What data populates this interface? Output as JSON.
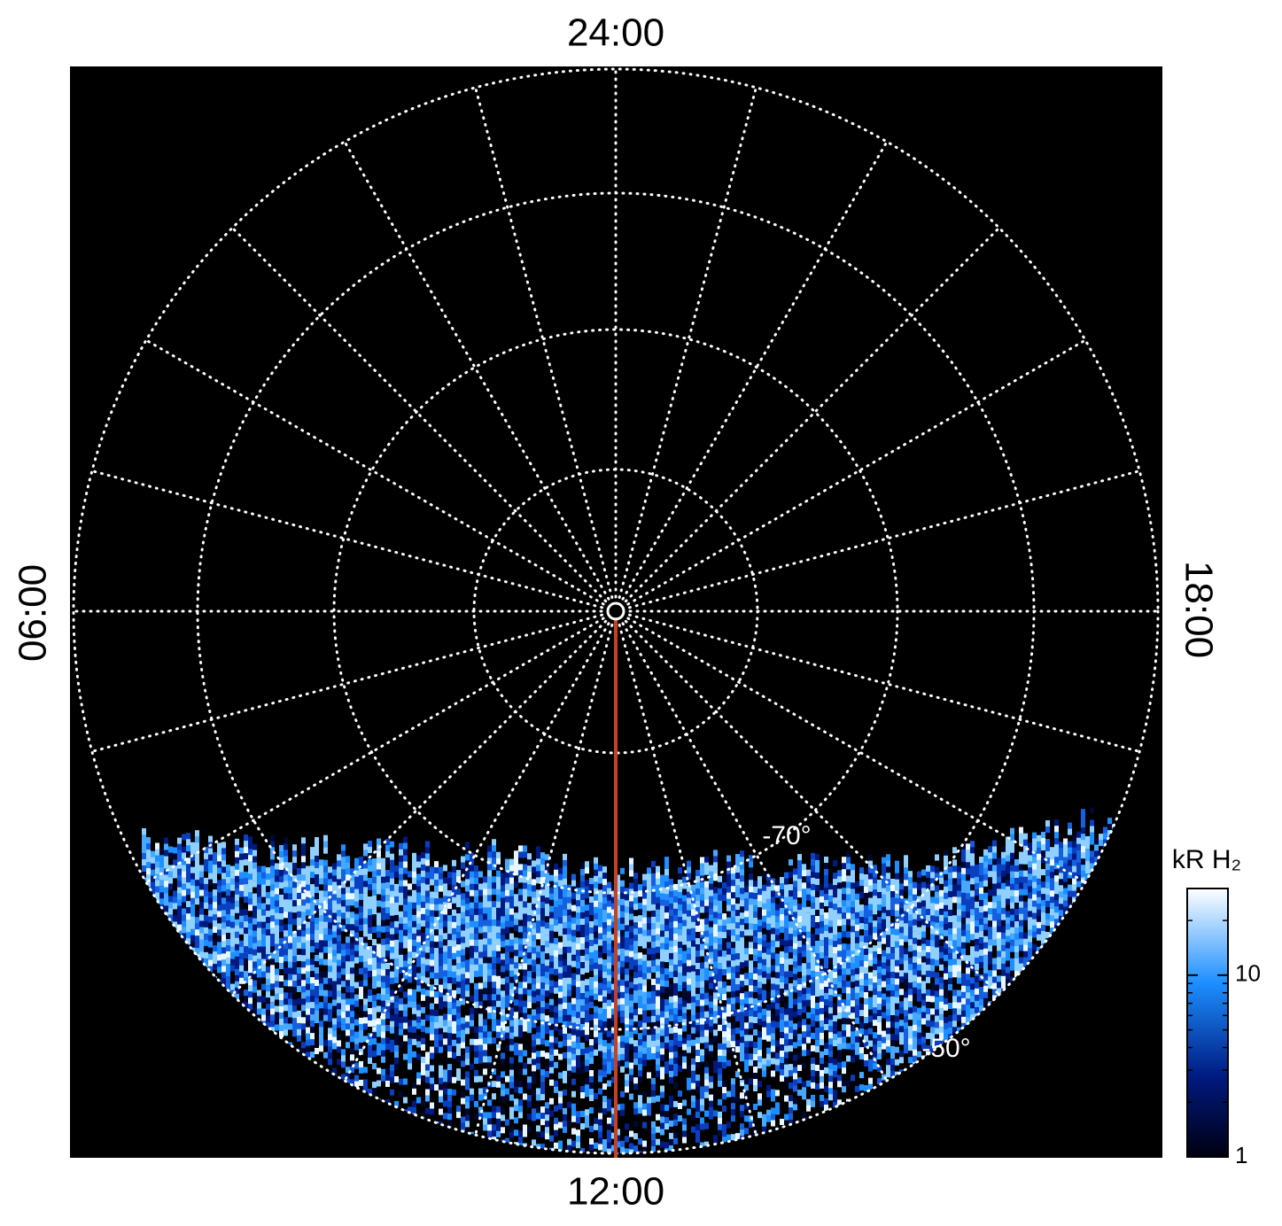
{
  "map": {
    "hour_labels": {
      "top": "24:00",
      "bottom": "12:00",
      "left": "06:00",
      "right": "18:00"
    },
    "latitude_labels": [
      "-70°",
      "-50°"
    ],
    "colorbar": {
      "title": "kR H₂",
      "scale": "log",
      "lim": [
        1,
        30
      ],
      "ticks": [
        1,
        10
      ]
    }
  }
}
